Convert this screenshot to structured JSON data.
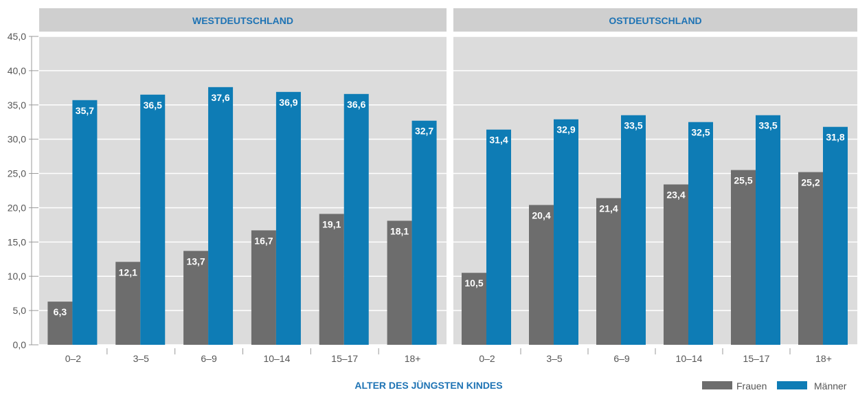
{
  "chart_data": {
    "type": "bar",
    "ylim": [
      0,
      45
    ],
    "yticks": [
      "0,0",
      "5,0",
      "10,0",
      "15,0",
      "20,0",
      "25,0",
      "30,0",
      "35,0",
      "40,0",
      "45,0"
    ],
    "xlabel": "ALTER DES JÜNGSTEN KINDES",
    "categories": [
      "0–2",
      "3–5",
      "6–9",
      "10–14",
      "15–17",
      "18+"
    ],
    "legend_position": "bottom-right",
    "grid": true,
    "colors": {
      "Frauen": "#6d6d6d",
      "Männer": "#0e7cb5",
      "panel": "#dcdcdc",
      "title": "#1e73b4"
    },
    "panels": [
      {
        "title": "WESTDEUTSCHLAND",
        "series": [
          {
            "name": "Frauen",
            "values": [
              6.3,
              12.1,
              13.7,
              16.7,
              19.1,
              18.1
            ],
            "labels": [
              "6,3",
              "12,1",
              "13,7",
              "16,7",
              "19,1",
              "18,1"
            ]
          },
          {
            "name": "Männer",
            "values": [
              35.7,
              36.5,
              37.6,
              36.9,
              36.6,
              32.7
            ],
            "labels": [
              "35,7",
              "36,5",
              "37,6",
              "36,9",
              "36,6",
              "32,7"
            ]
          }
        ]
      },
      {
        "title": "OSTDEUTSCHLAND",
        "series": [
          {
            "name": "Frauen",
            "values": [
              10.5,
              20.4,
              21.4,
              23.4,
              25.5,
              25.2
            ],
            "labels": [
              "10,5",
              "20,4",
              "21,4",
              "23,4",
              "25,5",
              "25,2"
            ]
          },
          {
            "name": "Männer",
            "values": [
              31.4,
              32.9,
              33.5,
              32.5,
              33.5,
              31.8
            ],
            "labels": [
              "31,4",
              "32,9",
              "33,5",
              "32,5",
              "33,5",
              "31,8"
            ]
          }
        ]
      }
    ],
    "legend": [
      "Frauen",
      "Männer"
    ]
  }
}
